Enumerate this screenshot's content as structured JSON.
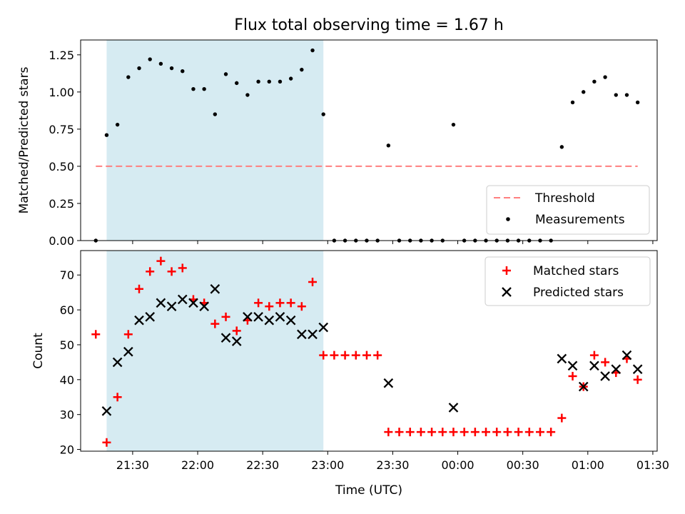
{
  "title": "Flux total observing time = 1.67 h",
  "shade_color": "#add8e6",
  "chart_data": [
    {
      "type": "scatter",
      "panel": "top",
      "ylabel": "Matched/Predicted stars",
      "xlabel": "",
      "ylim": [
        0,
        1.35
      ],
      "yticks": [
        0.0,
        0.25,
        0.5,
        0.75,
        1.0,
        1.25
      ],
      "ytick_labels": [
        "0.00",
        "0.25",
        "0.50",
        "0.75",
        "1.00",
        "1.25"
      ],
      "legend_position": "lower right",
      "shaded_region": {
        "start": "21:18",
        "end": "22:58"
      },
      "threshold": {
        "name": "Threshold",
        "value": 0.5,
        "start": "21:13",
        "end": "01:23",
        "color": "#ff7f7f",
        "style": "dashed"
      },
      "series": [
        {
          "name": "Measurements",
          "color": "#000000",
          "marker": "dot",
          "x": [
            "21:13",
            "21:18",
            "21:23",
            "21:28",
            "21:33",
            "21:38",
            "21:43",
            "21:48",
            "21:53",
            "21:58",
            "22:03",
            "22:08",
            "22:13",
            "22:18",
            "22:23",
            "22:28",
            "22:33",
            "22:38",
            "22:43",
            "22:48",
            "22:53",
            "22:58",
            "23:03",
            "23:08",
            "23:13",
            "23:18",
            "23:23",
            "23:28",
            "23:33",
            "23:38",
            "23:43",
            "23:48",
            "23:53",
            "23:58",
            "00:03",
            "00:08",
            "00:13",
            "00:18",
            "00:23",
            "00:28",
            "00:33",
            "00:38",
            "00:43",
            "00:48",
            "00:53",
            "00:58",
            "01:03",
            "01:08",
            "01:13",
            "01:18",
            "01:23"
          ],
          "y": [
            0,
            0.71,
            0.78,
            1.1,
            1.16,
            1.22,
            1.19,
            1.16,
            1.14,
            1.02,
            1.02,
            0.85,
            1.12,
            1.06,
            0.98,
            1.07,
            1.07,
            1.07,
            1.09,
            1.15,
            1.28,
            0.85,
            0,
            0,
            0,
            0,
            0,
            0.64,
            0,
            0,
            0,
            0,
            0,
            0.78,
            0,
            0,
            0,
            0,
            0,
            0,
            0,
            0,
            0,
            0.63,
            0.93,
            1.0,
            1.07,
            1.1,
            0.98,
            0.98,
            0.93
          ]
        }
      ]
    },
    {
      "type": "scatter",
      "panel": "bottom",
      "ylabel": "Count",
      "xlabel": "Time (UTC)",
      "ylim": [
        19.5,
        77
      ],
      "yticks": [
        20,
        30,
        40,
        50,
        60,
        70
      ],
      "ytick_labels": [
        "20",
        "30",
        "40",
        "50",
        "60",
        "70"
      ],
      "xtick_labels": [
        "21:30",
        "22:00",
        "22:30",
        "23:00",
        "23:30",
        "00:00",
        "00:30",
        "01:00",
        "01:30"
      ],
      "xlim": [
        "21:06",
        "01:32"
      ],
      "legend_position": "upper right",
      "shaded_region": {
        "start": "21:18",
        "end": "22:58"
      },
      "series": [
        {
          "name": "Matched stars",
          "color": "#ff0000",
          "marker": "plus",
          "x": [
            "21:13",
            "21:18",
            "21:23",
            "21:28",
            "21:33",
            "21:38",
            "21:43",
            "21:48",
            "21:53",
            "21:58",
            "22:03",
            "22:08",
            "22:13",
            "22:18",
            "22:23",
            "22:28",
            "22:33",
            "22:38",
            "22:43",
            "22:48",
            "22:53",
            "22:58",
            "23:03",
            "23:08",
            "23:13",
            "23:18",
            "23:23",
            "23:28",
            "23:33",
            "23:38",
            "23:43",
            "23:48",
            "23:53",
            "23:58",
            "00:03",
            "00:08",
            "00:13",
            "00:18",
            "00:23",
            "00:28",
            "00:33",
            "00:38",
            "00:43",
            "00:48",
            "00:53",
            "00:58",
            "01:03",
            "01:08",
            "01:13",
            "01:18",
            "01:23"
          ],
          "y": [
            53,
            22,
            35,
            53,
            66,
            71,
            74,
            71,
            72,
            63,
            62,
            56,
            58,
            54,
            57,
            62,
            61,
            62,
            62,
            61,
            68,
            47,
            47,
            47,
            47,
            47,
            47,
            25,
            25,
            25,
            25,
            25,
            25,
            25,
            25,
            25,
            25,
            25,
            25,
            25,
            25,
            25,
            25,
            29,
            41,
            38,
            47,
            45,
            42,
            46,
            40
          ]
        },
        {
          "name": "Predicted stars",
          "color": "#000000",
          "marker": "x",
          "x": [
            "21:18",
            "21:23",
            "21:28",
            "21:33",
            "21:38",
            "21:43",
            "21:48",
            "21:53",
            "21:58",
            "22:03",
            "22:08",
            "22:13",
            "22:18",
            "22:23",
            "22:28",
            "22:33",
            "22:38",
            "22:43",
            "22:48",
            "22:53",
            "22:58",
            "23:28",
            "23:58",
            "00:48",
            "00:53",
            "00:58",
            "01:03",
            "01:08",
            "01:13",
            "01:18",
            "01:23"
          ],
          "y": [
            31,
            45,
            48,
            57,
            58,
            62,
            61,
            63,
            62,
            61,
            66,
            52,
            51,
            58,
            58,
            57,
            58,
            57,
            53,
            53,
            55,
            39,
            32,
            46,
            44,
            38,
            44,
            41,
            43,
            47,
            43
          ]
        }
      ]
    }
  ]
}
